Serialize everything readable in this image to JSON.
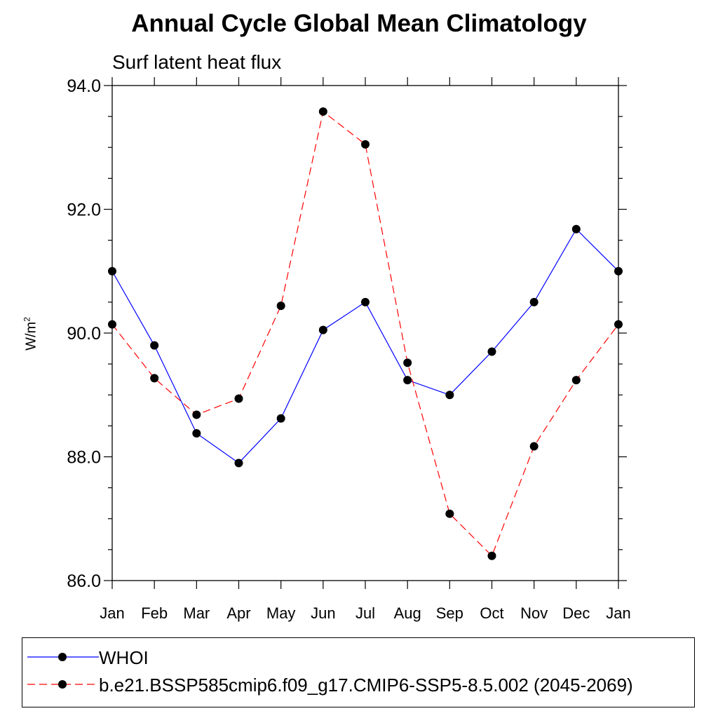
{
  "chart_data": {
    "type": "line",
    "title": "Annual Cycle Global Mean Climatology",
    "subtitle": "Surf latent heat flux",
    "ylabel_base": "W/m",
    "ylabel_sup": "2",
    "ylim": [
      86.0,
      94.0
    ],
    "yticks": [
      "86.0",
      "88.0",
      "90.0",
      "92.0",
      "94.0"
    ],
    "yminor_step": 0.5,
    "categories": [
      "Jan",
      "Feb",
      "Mar",
      "Apr",
      "May",
      "Jun",
      "Jul",
      "Aug",
      "Sep",
      "Oct",
      "Nov",
      "Dec",
      "Jan"
    ],
    "grid": false,
    "legend_position": "bottom",
    "series": [
      {
        "name": "WHOI",
        "color": "#0000ff",
        "dash": "solid",
        "values": [
          91.0,
          89.8,
          88.38,
          87.9,
          88.62,
          90.05,
          90.5,
          89.24,
          89.0,
          89.7,
          90.5,
          91.68,
          91.0
        ]
      },
      {
        "name": "b.e21.BSSP585cmip6.f09_g17.CMIP6-SSP5-8.5.002 (2045-2069)",
        "color": "#ff0000",
        "dash": "dashed",
        "values": [
          90.14,
          89.27,
          88.68,
          88.94,
          90.44,
          93.58,
          93.05,
          89.52,
          87.08,
          86.4,
          88.17,
          89.24,
          90.14
        ]
      }
    ]
  }
}
